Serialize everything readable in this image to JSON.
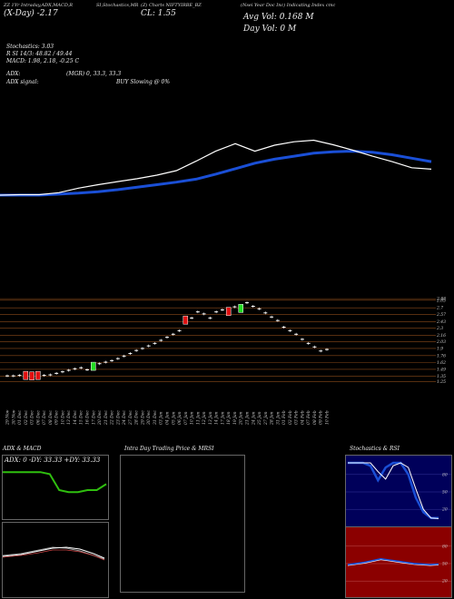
{
  "header": {
    "title_left": "ZZ 1Yr Intraday,ADX,MACD,R",
    "title_mid": "SI,Stochastics,MR",
    "title_right": "(Nsei Year Doc Inc) Indicating Index cmc",
    "symbol": "(Z) Charts NIFTYIRBE_BZ",
    "day_change": "(X-Day) -2.17",
    "close": "CL: 1.55",
    "avg_vol": "Avg Vol: 0.168 M",
    "day_vol": "Day Vol: 0 M"
  },
  "indicators": {
    "stoch": "Stochastics: 3.03",
    "rsi": "R SI 14/3: 48.82 / 49.44",
    "macd": "MACD: 1.98, 2.18, -0.25 C",
    "adx": "ADX:",
    "mgr": "(MGR) 0, 33.3, 33.3",
    "adx_signal": "ADX signal:",
    "buy": "BUY Slowing @ 0%"
  },
  "chart_data": [
    {
      "type": "line",
      "series": [
        {
          "values": [
            0.0,
            0.0,
            0.0,
            0.1,
            0.2,
            0.35,
            0.55,
            0.8,
            1.05,
            1.3,
            1.6,
            2.1,
            2.65,
            3.2,
            3.6,
            3.9,
            4.2,
            4.35,
            4.4,
            4.3,
            4.05,
            3.7,
            3.35
          ]
        },
        {
          "values": [
            0.0,
            0.05,
            0.05,
            0.25,
            0.7,
            1.05,
            1.35,
            1.65,
            2.0,
            2.45,
            3.4,
            4.4,
            5.15,
            4.4,
            5.0,
            5.35,
            5.5,
            5.05,
            4.5,
            3.9,
            3.35,
            2.75,
            2.6
          ]
        }
      ],
      "colors": [
        "#1a4fd6",
        "#ffffff"
      ]
    },
    {
      "type": "candlestick",
      "categories": [
        "29 Nov",
        "30 Nov",
        "01 Dec",
        "02 Dec",
        "03 Dec",
        "06 Dec",
        "07 Dec",
        "08 Dec",
        "09 Dec",
        "10 Dec",
        "13 Dec",
        "14 Dec",
        "15 Dec",
        "16 Dec",
        "17 Dec",
        "20 Dec",
        "21 Dec",
        "22 Dec",
        "23 Dec",
        "24 Dec",
        "27 Dec",
        "28 Dec",
        "29 Dec",
        "30 Dec",
        "31 Dec",
        "03 Jan",
        "04 Jan",
        "05 Jan",
        "06 Jan",
        "07 Jan",
        "10 Jan",
        "11 Jan",
        "12 Jan",
        "13 Jan",
        "14 Jan",
        "17 Jan",
        "18 Jan",
        "19 Jan",
        "20 Jan",
        "21 Jan",
        "24 Jan",
        "25 Jan",
        "27 Jan",
        "28 Jan",
        "31 Jan",
        "01 Feb",
        "02 Feb",
        "03 Feb",
        "04 Feb",
        "07 Feb",
        "08 Feb",
        "09 Feb",
        "10 Feb"
      ],
      "values": [
        1.36,
        1.36,
        1.37,
        1.36,
        1.35,
        1.36,
        1.37,
        1.38,
        1.41,
        1.44,
        1.47,
        1.5,
        1.52,
        1.48,
        1.54,
        1.6,
        1.63,
        1.66,
        1.7,
        1.75,
        1.8,
        1.86,
        1.9,
        1.95,
        2.0,
        2.06,
        2.12,
        2.18,
        2.25,
        2.45,
        2.5,
        2.62,
        2.58,
        2.5,
        2.62,
        2.66,
        2.62,
        2.72,
        2.68,
        2.8,
        2.73,
        2.68,
        2.6,
        2.52,
        2.45,
        2.32,
        2.25,
        2.18,
        2.08,
        2.0,
        1.93,
        1.85,
        1.88
      ],
      "up_bars": [
        14,
        38
      ],
      "down_bars": [
        3,
        4,
        5,
        29,
        36
      ],
      "price_labels": [
        "2.88",
        "2.85",
        "2.7",
        "2.57",
        "2.43",
        "2.3",
        "2.16",
        "2.03",
        "1.9",
        "1.76",
        "1.62",
        "1.49",
        "1.35",
        "1.25"
      ],
      "ylim": [
        1.22,
        2.9
      ]
    },
    {
      "type": "line",
      "title": "ADX & MACD",
      "subtitle": "ADX: 0  -DY: 33.33  +DY: 33.33",
      "series": [
        {
          "values": [
            0.95,
            0.95,
            0.95,
            0.95,
            0.95,
            0.9,
            0.5,
            0.45,
            0.45,
            0.5,
            0.5,
            0.65
          ]
        }
      ],
      "colors": [
        "#2fbf0f"
      ]
    },
    {
      "type": "line",
      "title": "Intra Day Trading Price & MRSI",
      "series": []
    },
    {
      "type": "line",
      "title": "Stochastics & RSI",
      "series": [
        {
          "values": [
            100,
            100,
            100,
            95,
            70,
            92,
            100,
            100,
            80,
            40,
            15,
            5,
            5
          ]
        },
        {
          "values": [
            100,
            100,
            100,
            100,
            85,
            72,
            95,
            100,
            92,
            55,
            20,
            5,
            4
          ]
        }
      ],
      "rsi_values": [
        48,
        50,
        52,
        55,
        58,
        56,
        54,
        52,
        50,
        49,
        48,
        49
      ],
      "y_labels": [
        "80",
        "50",
        "20"
      ],
      "rsi_y_labels": [
        "80",
        "50",
        "20"
      ],
      "colors": [
        "#1a4fd6",
        "#ffffff",
        "#8b0000"
      ]
    }
  ]
}
